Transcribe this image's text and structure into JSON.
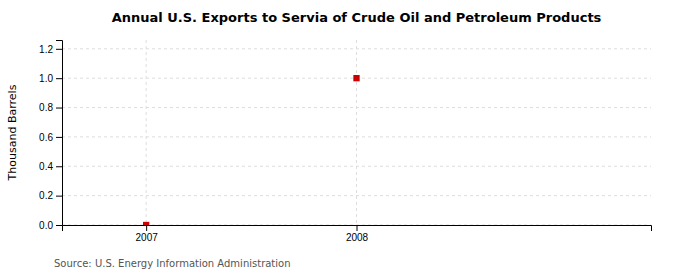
{
  "chart_data": {
    "type": "scatter",
    "title": "Annual U.S. Exports to Servia of Crude Oil and Petroleum Products",
    "ylabel": "Thousand Barrels",
    "source": "Source: U.S. Energy Information Administration",
    "x": [
      2007,
      2008
    ],
    "values": [
      0,
      1.0
    ],
    "color": "#cc0000",
    "marker": "square",
    "xlim": [
      2006.6,
      2009.4
    ],
    "ylim": [
      0.0,
      1.26
    ],
    "xticks": [
      2007,
      2008
    ],
    "yticks": [
      {
        "value": 0.0,
        "label": "0.0"
      },
      0.2,
      0.4,
      0.6,
      0.8,
      {
        "value": 1.0,
        "label": "1.0"
      },
      1.2
    ],
    "grid": true
  }
}
